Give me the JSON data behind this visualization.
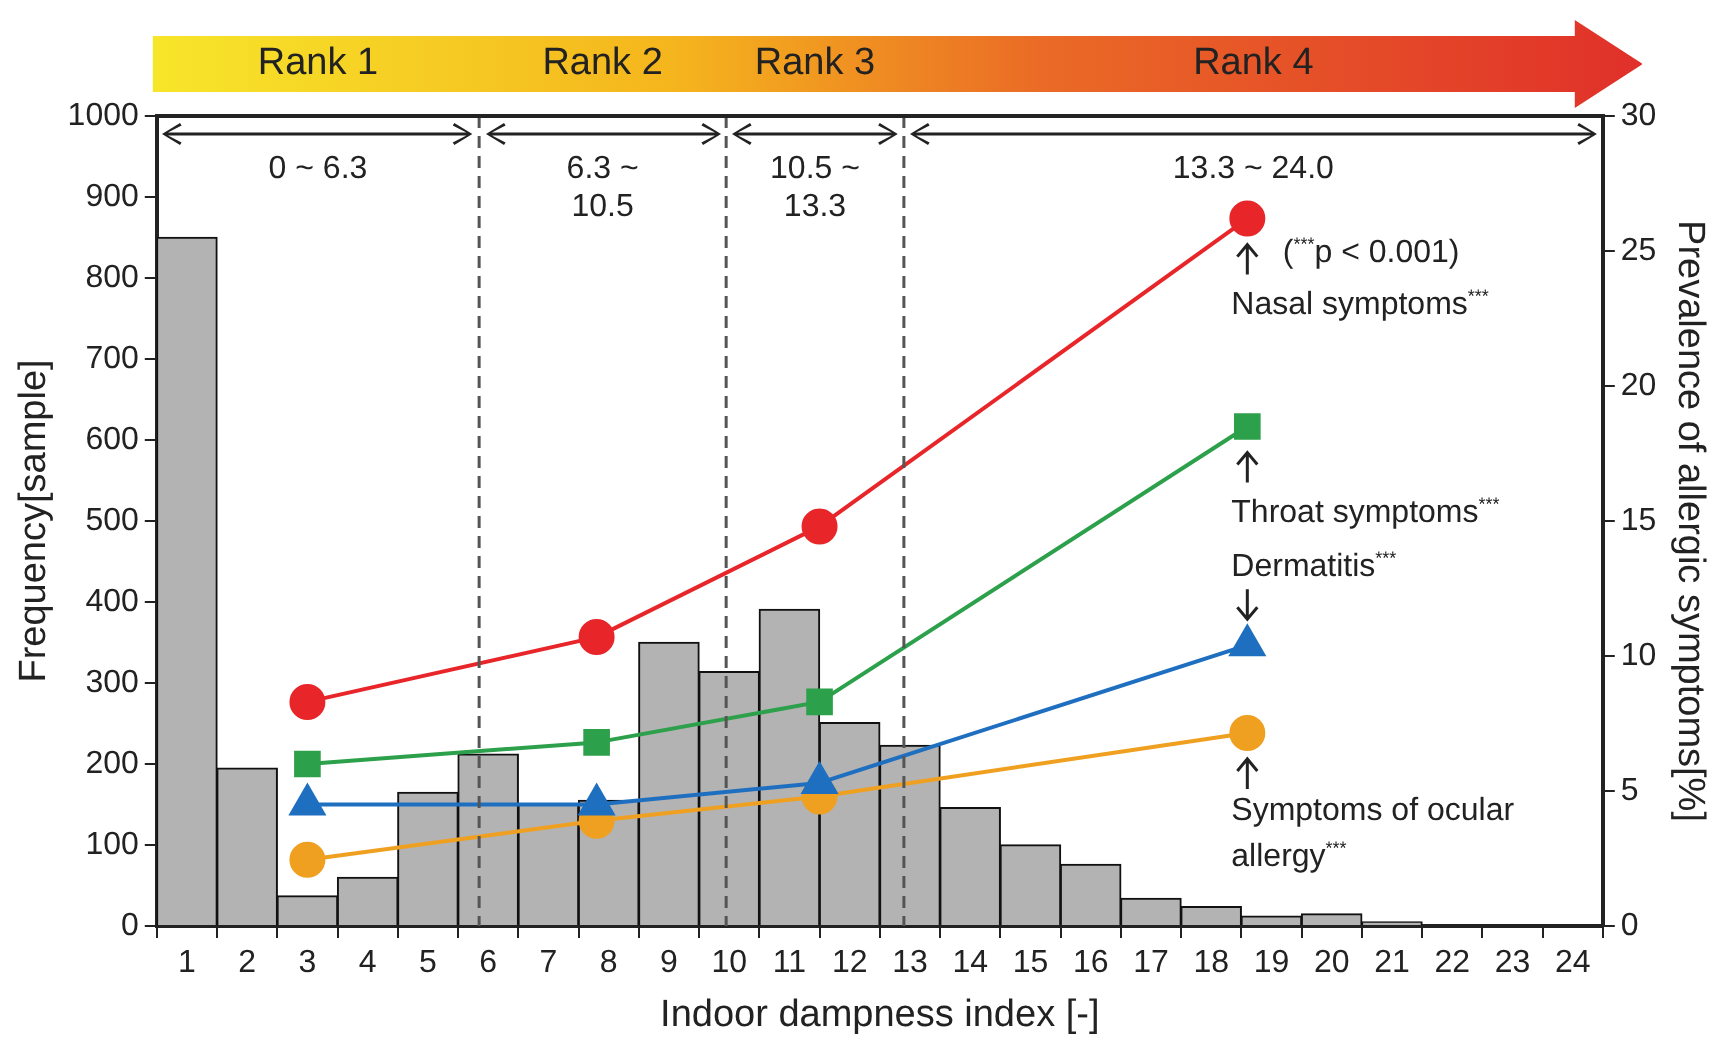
{
  "chart_data": {
    "type": "histogram",
    "xlabel": "Indoor dampness index [-]",
    "ylabel": "Frequency[sample]",
    "y2label": "Prevalence of allergic symptoms[%]",
    "bins": [
      0.5,
      1.5,
      2.5,
      3.5,
      4.5,
      5.5,
      6.5,
      7.5,
      8.5,
      9.5,
      10.5,
      11.5,
      12.5,
      13.5,
      14.5,
      15.5,
      16.5,
      17.5,
      18.5,
      19.5,
      20.5,
      21.5,
      22.5,
      23.5,
      24.5
    ],
    "values": [
      850,
      195,
      37,
      60,
      165,
      212,
      150,
      155,
      350,
      314,
      391,
      251,
      223,
      146,
      100,
      76,
      34,
      24,
      12,
      15,
      5,
      0,
      0,
      0
    ],
    "color": "#b3b3b3",
    "series": [
      {
        "name": "Nasal symptoms$^{***}$",
        "type": "line",
        "axis": "y2",
        "marker": "circle",
        "color": "#e8262a",
        "x": [
          3,
          7.8,
          11.5,
          18.6
        ],
        "values": [
          8.3,
          10.7,
          14.8,
          26.2
        ]
      },
      {
        "name": "Throat symptoms$^{***}$",
        "type": "line",
        "axis": "y2",
        "marker": "square",
        "color": "#2ca04a",
        "x": [
          3,
          7.8,
          11.5,
          18.6
        ],
        "values": [
          6,
          6.8,
          8.3,
          18.5
        ]
      },
      {
        "name": "Dermatitis$^{***}$",
        "type": "line",
        "axis": "y2",
        "marker": "triangle",
        "color": "#1f6fc0",
        "x": [
          3,
          7.8,
          11.5,
          18.6
        ],
        "values": [
          4.5,
          4.5,
          5.3,
          10.4
        ]
      },
      {
        "name": "Symptoms of ocular allergy$^{***}$",
        "type": "line",
        "axis": "y2",
        "marker": "circle",
        "color": "#f0a020",
        "x": [
          3,
          7.8,
          11.5,
          18.6
        ],
        "values": [
          2.45,
          3.9,
          4.8,
          7.15
        ]
      }
    ],
    "xlim": [
      0.5,
      24.5
    ],
    "xticks": [
      {
        "value": 1,
        "label": "1"
      },
      {
        "value": 2,
        "label": "2"
      },
      {
        "value": 3,
        "label": "3"
      },
      {
        "value": 4,
        "label": "4"
      },
      {
        "value": 5,
        "label": "5"
      },
      {
        "value": 6,
        "label": "6"
      },
      {
        "value": 7,
        "label": "7"
      },
      {
        "value": 8,
        "label": "8"
      },
      {
        "value": 9,
        "label": "9"
      },
      {
        "value": 10,
        "label": "10"
      },
      {
        "value": 11,
        "label": "11"
      },
      {
        "value": 12,
        "label": "12"
      },
      {
        "value": 13,
        "label": "13"
      },
      {
        "value": 14,
        "label": "14"
      },
      {
        "value": 15,
        "label": "15"
      },
      {
        "value": 16,
        "label": "16"
      },
      {
        "value": 17,
        "label": "17"
      },
      {
        "value": 18,
        "label": "18"
      },
      {
        "value": 19,
        "label": "19"
      },
      {
        "value": 20,
        "label": "20"
      },
      {
        "value": 21,
        "label": "21"
      },
      {
        "value": 22,
        "label": "22"
      },
      {
        "value": 23,
        "label": "23"
      },
      {
        "value": 24,
        "label": "24"
      }
    ],
    "ylim": [
      0,
      1000
    ],
    "yticks": [
      0,
      100,
      200,
      300,
      400,
      500,
      600,
      700,
      800,
      900,
      1000
    ],
    "y2lim": [
      0,
      30
    ],
    "y2ticks": [
      0,
      5,
      10,
      15,
      20,
      25,
      30
    ],
    "ref_lines": [
      {
        "axis": "x",
        "value": 5.85,
        "line_style": "dashed",
        "color": "#555555"
      },
      {
        "axis": "x",
        "value": 9.95,
        "line_style": "dashed",
        "color": "#555555"
      },
      {
        "axis": "x",
        "value": 12.9,
        "line_style": "dashed",
        "color": "#555555"
      }
    ],
    "annotations": [
      "Rank 1",
      "Rank 2",
      "Rank 3",
      "Rank 4",
      "0 ~ 6.3",
      "6.3 ~ 10.5",
      "10.5 ~ 13.3",
      "13.3 ~ 24.0",
      "($^{***}$p < 0.001)"
    ],
    "grid": false,
    "legend": false
  }
}
